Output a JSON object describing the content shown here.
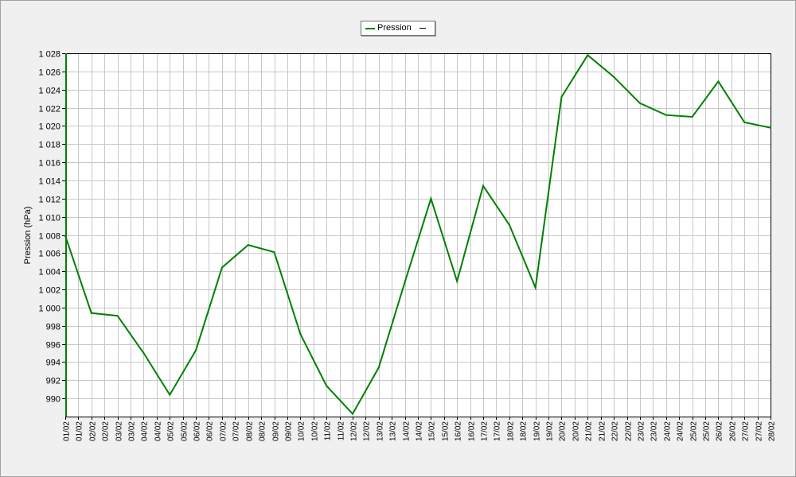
{
  "chart_data": {
    "type": "line",
    "legend": {
      "position": "top-center",
      "entries": [
        "Pression"
      ]
    },
    "title": "",
    "xlabel": "",
    "ylabel": "Pression (hPa)",
    "ylim": [
      988,
      1028
    ],
    "yticks": [
      990,
      992,
      994,
      996,
      998,
      1000,
      1002,
      1004,
      1006,
      1008,
      1010,
      1012,
      1014,
      1016,
      1018,
      1020,
      1022,
      1024,
      1026,
      1028
    ],
    "ytick_labels": [
      "990",
      "992",
      "994",
      "996",
      "998",
      "1 000",
      "1 002",
      "1 004",
      "1 006",
      "1 008",
      "1 010",
      "1 012",
      "1 014",
      "1 016",
      "1 018",
      "1 020",
      "1 022",
      "1 024",
      "1 026",
      "1 028"
    ],
    "x_tick_labels": [
      "01/02",
      "01/02",
      "02/02",
      "02/02",
      "03/02",
      "03/02",
      "04/02",
      "04/02",
      "05/02",
      "05/02",
      "06/02",
      "06/02",
      "07/02",
      "07/02",
      "08/02",
      "08/02",
      "09/02",
      "09/02",
      "10/02",
      "10/02",
      "11/02",
      "11/02",
      "12/02",
      "12/02",
      "13/02",
      "13/02",
      "14/02",
      "14/02",
      "15/02",
      "15/02",
      "16/02",
      "16/02",
      "17/02",
      "17/02",
      "18/02",
      "18/02",
      "19/02",
      "19/02",
      "20/02",
      "20/02",
      "21/02",
      "21/02",
      "22/02",
      "22/02",
      "23/02",
      "23/02",
      "24/02",
      "24/02",
      "25/02",
      "25/02",
      "26/02",
      "26/02",
      "27/02",
      "27/02",
      "28/02"
    ],
    "x_ticks_per_day": 2,
    "grid": true,
    "series": [
      {
        "name": "Pression",
        "color": "#008000",
        "x": [
          0,
          2,
          4,
          6,
          8,
          10,
          12,
          14,
          16,
          18,
          20,
          22,
          24,
          26,
          28,
          30,
          32,
          34,
          36,
          38,
          40,
          42,
          44,
          46,
          48,
          50,
          52,
          54
        ],
        "values": [
          1007.9,
          999.4,
          999.1,
          995.0,
          990.4,
          995.3,
          1004.4,
          1006.9,
          1006.1,
          997.1,
          991.4,
          988.3,
          993.4,
          1002.8,
          1012.0,
          1002.9,
          1013.4,
          1009.1,
          1002.2,
          1023.2,
          1027.8,
          1025.4,
          1022.5,
          1021.2,
          1021.0,
          1024.9,
          1020.4,
          1019.8
        ]
      }
    ]
  }
}
